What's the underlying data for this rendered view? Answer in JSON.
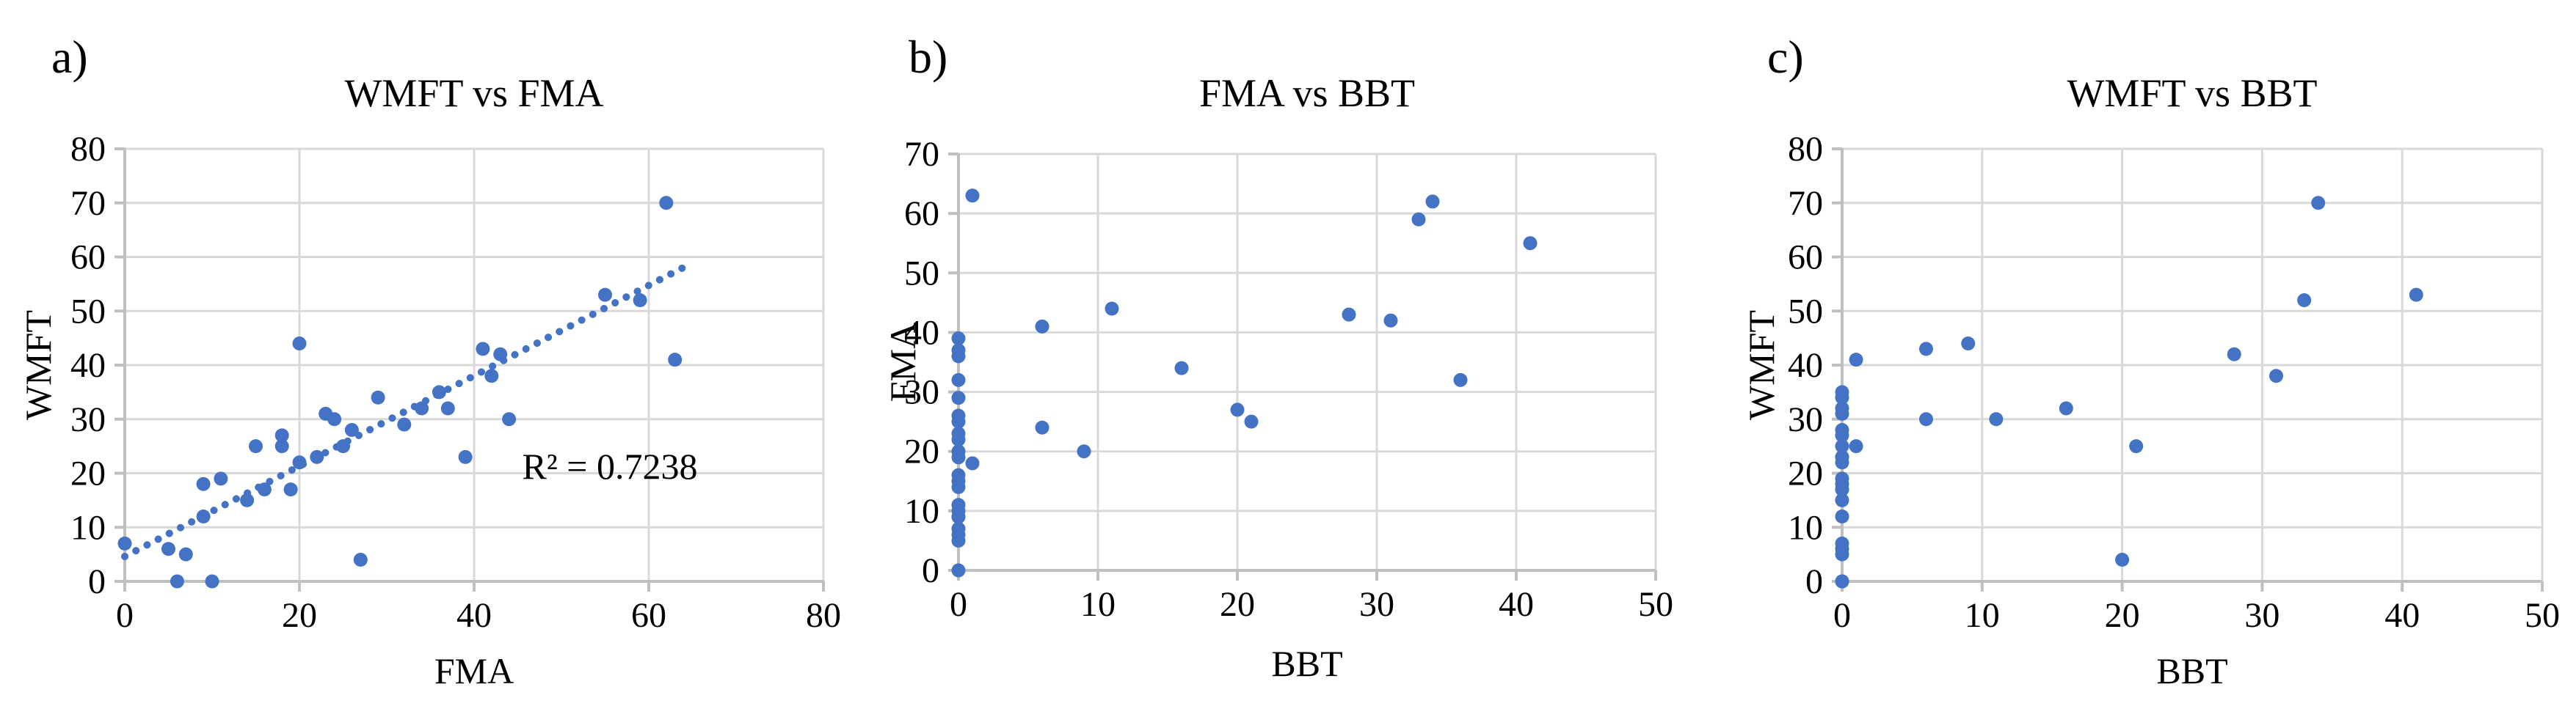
{
  "figure": {
    "background": "#ffffff",
    "point_color": "#4472C4",
    "trendline_color": "#4472C4",
    "gridline_color": "#D9D9D9",
    "axis_color": "#BFBFBF",
    "text_color": "#000000"
  },
  "chart_data": [
    {
      "type": "scatter",
      "panel_label": "a)",
      "title": "WMFT vs FMA",
      "xlabel": "FMA",
      "ylabel": "WMFT",
      "xlim": [
        0,
        80
      ],
      "ylim": [
        0,
        80
      ],
      "x_ticks": [
        0,
        20,
        40,
        60,
        80
      ],
      "y_ticks": [
        0,
        10,
        20,
        30,
        40,
        50,
        60,
        70,
        80
      ],
      "grid": true,
      "points": [
        [
          0,
          7
        ],
        [
          5,
          6
        ],
        [
          6,
          0
        ],
        [
          7,
          5
        ],
        [
          9,
          12
        ],
        [
          9,
          18
        ],
        [
          10,
          0
        ],
        [
          11,
          19
        ],
        [
          14,
          15
        ],
        [
          15,
          25
        ],
        [
          16,
          17
        ],
        [
          18,
          25
        ],
        [
          18,
          27
        ],
        [
          19,
          17
        ],
        [
          20,
          22
        ],
        [
          20,
          44
        ],
        [
          22,
          23
        ],
        [
          23,
          31
        ],
        [
          24,
          30
        ],
        [
          25,
          25
        ],
        [
          26,
          28
        ],
        [
          27,
          4
        ],
        [
          29,
          34
        ],
        [
          32,
          29
        ],
        [
          34,
          32
        ],
        [
          36,
          35
        ],
        [
          37,
          32
        ],
        [
          39,
          23
        ],
        [
          41,
          43
        ],
        [
          42,
          38
        ],
        [
          43,
          42
        ],
        [
          44,
          30
        ],
        [
          55,
          53
        ],
        [
          59,
          52
        ],
        [
          62,
          70
        ],
        [
          63,
          41
        ]
      ],
      "trendline": {
        "style": "dotted",
        "x1": 0,
        "y1": 4.6,
        "x2": 64.5,
        "y2": 58.5
      },
      "annotation": {
        "text": "R² = 0.7238",
        "x": 45.5,
        "y": 19
      }
    },
    {
      "type": "scatter",
      "panel_label": "b)",
      "title": "FMA vs BBT",
      "xlabel": "BBT",
      "ylabel": "FMA",
      "xlim": [
        0,
        50
      ],
      "ylim": [
        0,
        70
      ],
      "x_ticks": [
        0,
        10,
        20,
        30,
        40,
        50
      ],
      "y_ticks": [
        0,
        10,
        20,
        30,
        40,
        50,
        60,
        70
      ],
      "grid": true,
      "points": [
        [
          0,
          0
        ],
        [
          0,
          5
        ],
        [
          0,
          6
        ],
        [
          0,
          7
        ],
        [
          0,
          9
        ],
        [
          0,
          9
        ],
        [
          0,
          10
        ],
        [
          0,
          11
        ],
        [
          0,
          14
        ],
        [
          0,
          15
        ],
        [
          0,
          16
        ],
        [
          0,
          19
        ],
        [
          0,
          20
        ],
        [
          0,
          22
        ],
        [
          0,
          23
        ],
        [
          0,
          25
        ],
        [
          0,
          26
        ],
        [
          0,
          29
        ],
        [
          0,
          32
        ],
        [
          0,
          36
        ],
        [
          0,
          37
        ],
        [
          0,
          39
        ],
        [
          1,
          18
        ],
        [
          1,
          63
        ],
        [
          6,
          24
        ],
        [
          6,
          41
        ],
        [
          9,
          20
        ],
        [
          11,
          44
        ],
        [
          16,
          34
        ],
        [
          20,
          27
        ],
        [
          21,
          25
        ],
        [
          28,
          43
        ],
        [
          31,
          42
        ],
        [
          33,
          59
        ],
        [
          34,
          62
        ],
        [
          36,
          32
        ],
        [
          41,
          55
        ]
      ],
      "trendline": null,
      "annotation": null
    },
    {
      "type": "scatter",
      "panel_label": "c)",
      "title": "WMFT vs BBT",
      "xlabel": "BBT",
      "ylabel": "WMFT",
      "xlim": [
        0,
        50
      ],
      "ylim": [
        0,
        80
      ],
      "x_ticks": [
        0,
        10,
        20,
        30,
        40,
        50
      ],
      "y_ticks": [
        0,
        10,
        20,
        30,
        40,
        50,
        60,
        70,
        80
      ],
      "grid": true,
      "points": [
        [
          0,
          0
        ],
        [
          0,
          0
        ],
        [
          0,
          5
        ],
        [
          0,
          6
        ],
        [
          0,
          7
        ],
        [
          0,
          12
        ],
        [
          0,
          15
        ],
        [
          0,
          17
        ],
        [
          0,
          17
        ],
        [
          0,
          18
        ],
        [
          0,
          19
        ],
        [
          0,
          22
        ],
        [
          0,
          23
        ],
        [
          0,
          23
        ],
        [
          0,
          25
        ],
        [
          0,
          27
        ],
        [
          0,
          28
        ],
        [
          0,
          31
        ],
        [
          0,
          32
        ],
        [
          0,
          34
        ],
        [
          0,
          35
        ],
        [
          1,
          25
        ],
        [
          1,
          41
        ],
        [
          6,
          30
        ],
        [
          6,
          43
        ],
        [
          9,
          44
        ],
        [
          11,
          30
        ],
        [
          16,
          32
        ],
        [
          20,
          4
        ],
        [
          21,
          25
        ],
        [
          28,
          42
        ],
        [
          31,
          38
        ],
        [
          33,
          52
        ],
        [
          34,
          70
        ],
        [
          41,
          53
        ]
      ],
      "trendline": null,
      "annotation": null
    }
  ]
}
